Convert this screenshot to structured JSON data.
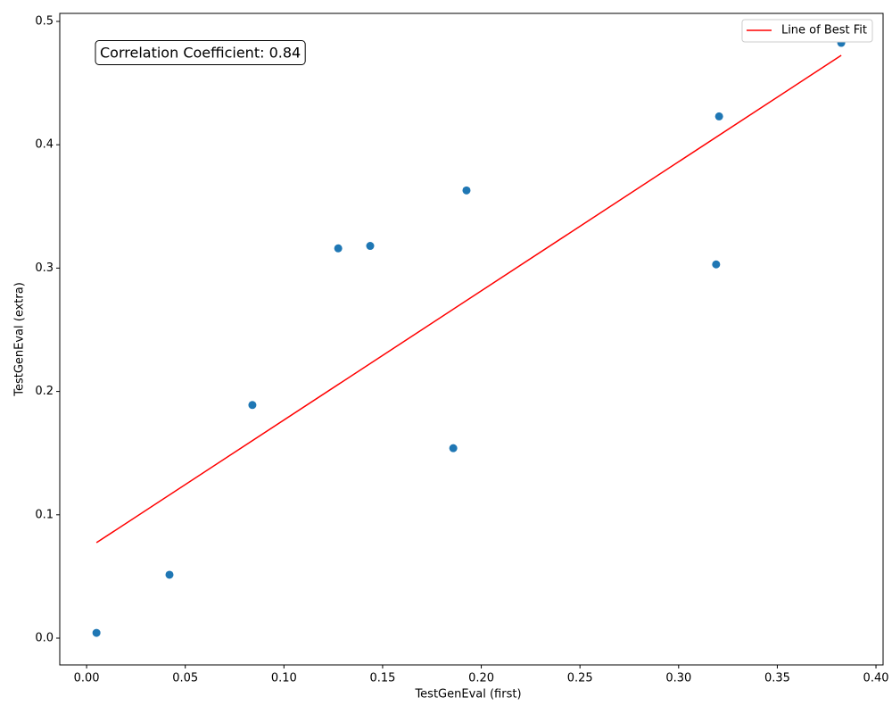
{
  "chart_data": {
    "type": "scatter",
    "xlabel": "TestGenEval (first)",
    "ylabel": "TestGenEval (extra)",
    "annotation": "Correlation Coefficient: 0.84",
    "legend": "upper right",
    "grid": false,
    "xlim": [
      -0.0136,
      0.4036
    ],
    "ylim": [
      -0.0217,
      0.5065
    ],
    "xticks": [
      {
        "value": 0,
        "label": "0.00"
      },
      0.05,
      {
        "value": 0.1,
        "label": "0.10"
      },
      0.15,
      {
        "value": 0.2,
        "label": "0.20"
      },
      0.25,
      {
        "value": 0.3,
        "label": "0.30"
      },
      0.35,
      {
        "value": 0.4,
        "label": "0.40"
      }
    ],
    "yticks": [
      {
        "value": 0,
        "label": "0.0"
      },
      0.1,
      0.2,
      0.3,
      0.4,
      0.5
    ],
    "series": [
      {
        "type": "scatter",
        "color": "#1f77b4",
        "x": [
          0.005,
          0.042,
          0.084,
          0.1275,
          0.1437,
          0.1858,
          0.1925,
          0.319,
          0.3205,
          0.3824
        ],
        "values": [
          0.0043,
          0.0514,
          0.189,
          0.316,
          0.318,
          0.154,
          0.363,
          0.303,
          0.423,
          0.4826
        ]
      },
      {
        "type": "line",
        "name": "Line of Best Fit",
        "color": "#ff0000",
        "x": [
          0.005,
          0.3824
        ],
        "values": [
          0.0774,
          0.4725
        ]
      }
    ]
  }
}
